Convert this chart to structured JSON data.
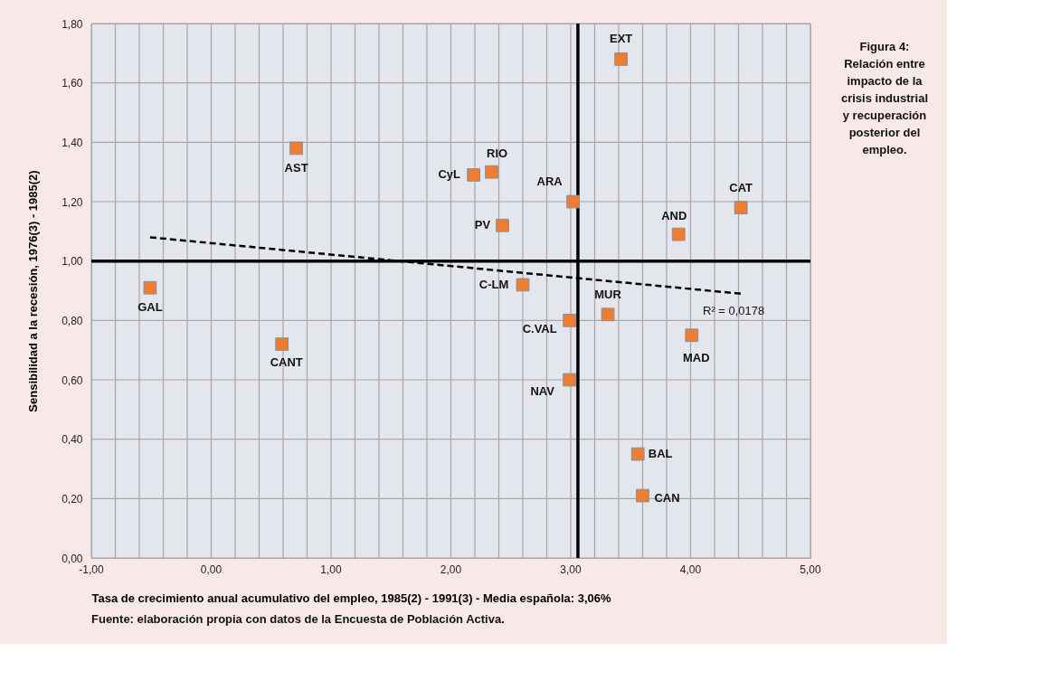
{
  "chart_data": {
    "type": "scatter",
    "title": "Figura 4: Relación entre impacto de la crisis industrial y recuperación posterior del empleo.",
    "xlabel": "Tasa de crecimiento anual acumulativo del empleo, 1985(2) - 1991(3) - Media española: 3,06%",
    "ylabel": "Sensibilidad a la recesión, 1976(3) - 1985(2)",
    "annotations": [
      "Fuente: elaboración propia con datos de la Encuesta de Población Activa.",
      "R² = 0,0178"
    ],
    "series": [
      {
        "name": "GAL",
        "color": "#ed7d31",
        "x": [
          -0.51
        ],
        "values": [
          0.91
        ]
      },
      {
        "name": "AST",
        "color": "#ed7d31",
        "x": [
          0.71
        ],
        "values": [
          1.38
        ]
      },
      {
        "name": "CyL",
        "color": "#ed7d31",
        "x": [
          2.19
        ],
        "values": [
          1.29
        ]
      },
      {
        "name": "RIO",
        "color": "#ed7d31",
        "x": [
          2.34
        ],
        "values": [
          1.3
        ]
      },
      {
        "name": "PV",
        "color": "#ed7d31",
        "x": [
          2.43
        ],
        "values": [
          1.12
        ]
      },
      {
        "name": "ARA",
        "color": "#ed7d31",
        "x": [
          3.02
        ],
        "values": [
          1.2
        ]
      },
      {
        "name": "EXT",
        "color": "#ed7d31",
        "x": [
          3.42
        ],
        "values": [
          1.68
        ]
      },
      {
        "name": "CAT",
        "color": "#ed7d31",
        "x": [
          4.42
        ],
        "values": [
          1.18
        ]
      },
      {
        "name": "AND",
        "color": "#ed7d31",
        "x": [
          3.9
        ],
        "values": [
          1.09
        ]
      },
      {
        "name": "C-LM",
        "color": "#ed7d31",
        "x": [
          2.6
        ],
        "values": [
          0.92
        ]
      },
      {
        "name": "MUR",
        "color": "#ed7d31",
        "x": [
          3.31
        ],
        "values": [
          0.82
        ]
      },
      {
        "name": "C.VAL",
        "color": "#ed7d31",
        "x": [
          2.99
        ],
        "values": [
          0.8
        ]
      },
      {
        "name": "MAD",
        "color": "#ed7d31",
        "x": [
          4.01
        ],
        "values": [
          0.75
        ]
      },
      {
        "name": "NAV",
        "color": "#ed7d31",
        "x": [
          2.99
        ],
        "values": [
          0.6
        ]
      },
      {
        "name": "BAL",
        "color": "#ed7d31",
        "x": [
          3.56
        ],
        "values": [
          0.35
        ]
      },
      {
        "name": "CAN",
        "color": "#ed7d31",
        "x": [
          3.6
        ],
        "values": [
          0.21
        ]
      },
      {
        "name": "CANT",
        "color": "#ed7d31",
        "x": [
          0.59
        ],
        "values": [
          0.72
        ]
      },
      {
        "type": "line",
        "line_style": "dashed",
        "marker": "none",
        "color": "#000000",
        "x": [
          -0.51,
          4.42
        ],
        "values": [
          1.08,
          0.89
        ]
      }
    ],
    "ref_lines": [
      {
        "axis": "y",
        "value": 1.0,
        "color": "#000000",
        "line_style": "solid"
      },
      {
        "axis": "x",
        "value": 3.06,
        "color": "#000000",
        "line_style": "solid"
      }
    ],
    "marker": "square",
    "xlim": [
      -1,
      5
    ],
    "xticks": [
      {
        "value": -1,
        "label": "-1,00"
      },
      {
        "value": -0.8,
        "label": null
      },
      {
        "value": -0.6,
        "label": null
      },
      {
        "value": -0.4,
        "label": null
      },
      {
        "value": -0.2,
        "label": null
      },
      {
        "value": 0,
        "label": "0,00"
      },
      {
        "value": 0.2,
        "label": null
      },
      {
        "value": 0.4,
        "label": null
      },
      {
        "value": 0.6,
        "label": null
      },
      {
        "value": 0.8,
        "label": null
      },
      {
        "value": 1,
        "label": "1,00"
      },
      {
        "value": 1.2,
        "label": null
      },
      {
        "value": 1.4,
        "label": null
      },
      {
        "value": 1.6,
        "label": null
      },
      {
        "value": 1.8,
        "label": null
      },
      {
        "value": 2,
        "label": "2,00"
      },
      {
        "value": 2.2,
        "label": null
      },
      {
        "value": 2.4,
        "label": null
      },
      {
        "value": 2.6,
        "label": null
      },
      {
        "value": 2.8,
        "label": null
      },
      {
        "value": 3,
        "label": "3,00"
      },
      {
        "value": 3.2,
        "label": null
      },
      {
        "value": 3.4,
        "label": null
      },
      {
        "value": 3.6,
        "label": null
      },
      {
        "value": 3.8,
        "label": null
      },
      {
        "value": 4,
        "label": "4,00"
      },
      {
        "value": 4.2,
        "label": null
      },
      {
        "value": 4.4,
        "label": null
      },
      {
        "value": 4.6,
        "label": null
      },
      {
        "value": 4.8,
        "label": null
      },
      {
        "value": 5,
        "label": "5,00"
      }
    ],
    "ylim": [
      0,
      1.8
    ],
    "yticks": [
      {
        "value": 0,
        "label": "0,00"
      },
      {
        "value": 0.2,
        "label": "0,20"
      },
      {
        "value": 0.4,
        "label": "0,40"
      },
      {
        "value": 0.6,
        "label": "0,60"
      },
      {
        "value": 0.8,
        "label": "0,80"
      },
      {
        "value": 1.0,
        "label": "1,00"
      },
      {
        "value": 1.2,
        "label": "1,20"
      },
      {
        "value": 1.4,
        "label": "1,40"
      },
      {
        "value": 1.6,
        "label": "1,60"
      },
      {
        "value": 1.8,
        "label": "1,80"
      }
    ],
    "grid": true
  }
}
